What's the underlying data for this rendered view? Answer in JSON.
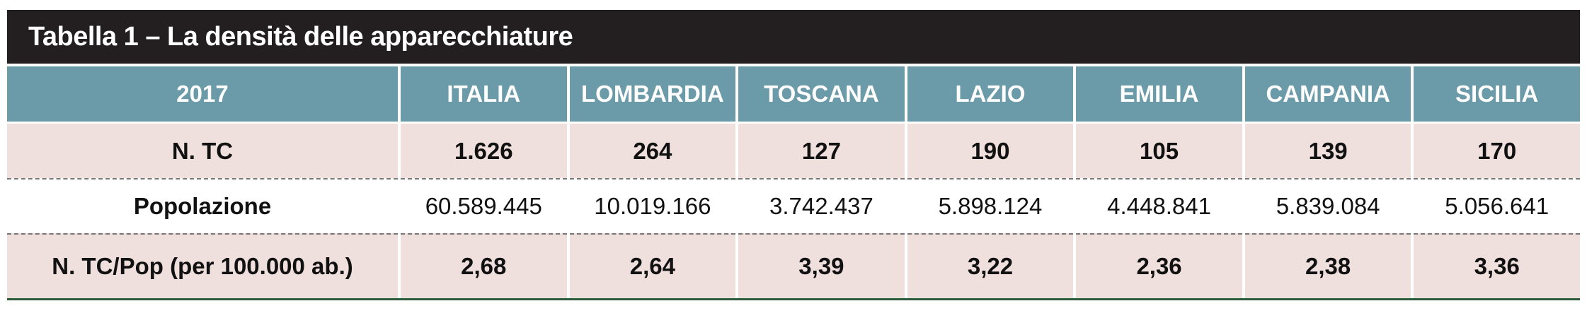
{
  "title": "Tabella 1 – La densità delle apparecchiature",
  "table": {
    "header": [
      "2017",
      "ITALIA",
      "LOMBARDIA",
      "TOSCANA",
      "LAZIO",
      "EMILIA",
      "CAMPANIA",
      "SICILIA"
    ],
    "rows": [
      [
        "N. TC",
        "1.626",
        "264",
        "127",
        "190",
        "105",
        "139",
        "170"
      ],
      [
        "Popolazione",
        "60.589.445",
        "10.019.166",
        "3.742.437",
        "5.898.124",
        "4.448.841",
        "5.839.084",
        "5.056.641"
      ],
      [
        "N. TC/Pop (per 100.000 ab.)",
        "2,68",
        "2,64",
        "3,39",
        "3,22",
        "2,36",
        "2,38",
        "3,36"
      ]
    ]
  }
}
